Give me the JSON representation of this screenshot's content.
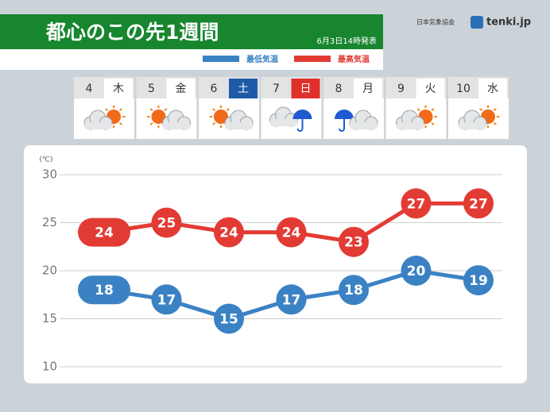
{
  "chart_data": {
    "type": "line",
    "title": "都心のこの先1週間",
    "issued": "6月3日14時発表",
    "source": "日本気象協会",
    "brand": "tenki.jp",
    "y_unit": "(℃)",
    "categories": [
      "4",
      "5",
      "6",
      "7",
      "8",
      "9",
      "10"
    ],
    "weekdays": [
      "木",
      "金",
      "土",
      "日",
      "月",
      "火",
      "水"
    ],
    "weekday_colors": [
      null,
      null,
      "#1e5ba6",
      "#e0302c",
      null,
      null,
      null
    ],
    "series": [
      {
        "name": "最低気温",
        "color": "#3b82c4",
        "values": [
          18,
          17,
          15,
          17,
          18,
          20,
          19
        ]
      },
      {
        "name": "最高気温",
        "color": "#e23b34",
        "values": [
          24,
          25,
          24,
          24,
          23,
          27,
          27
        ]
      }
    ],
    "ylim": [
      10,
      30
    ],
    "yticks": [
      10,
      15,
      20,
      25,
      30
    ],
    "grid": true
  }
}
